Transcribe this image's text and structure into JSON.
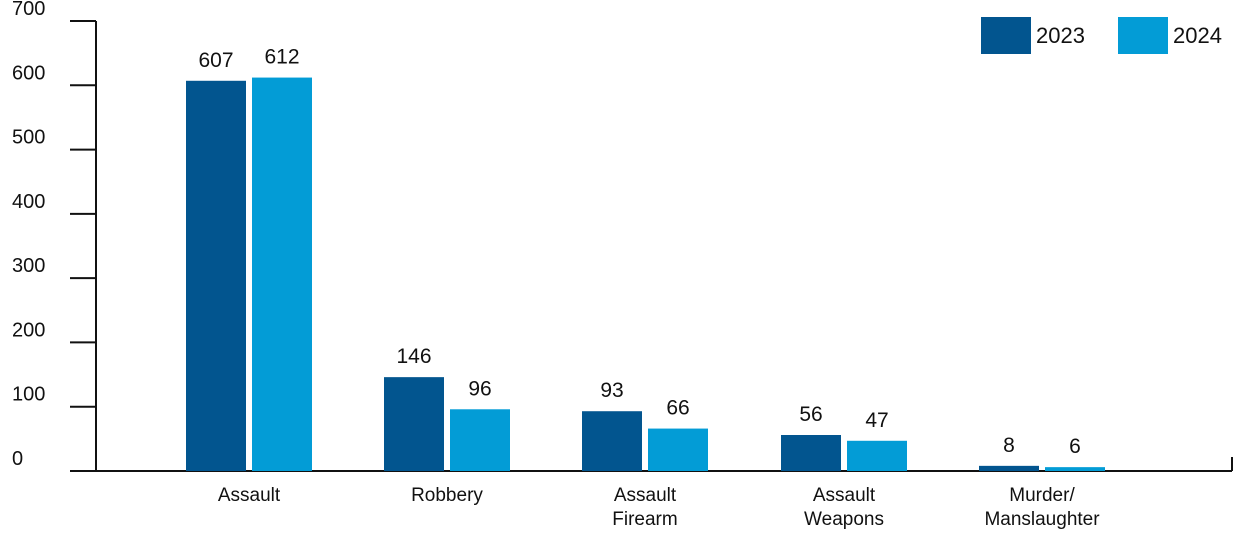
{
  "chart_data": {
    "type": "bar",
    "title": "",
    "xlabel": "",
    "ylabel": "",
    "ylim": [
      0,
      700
    ],
    "yticks": [
      0,
      100,
      200,
      300,
      400,
      500,
      600,
      700
    ],
    "grid": false,
    "legend_position": "top-right",
    "categories": [
      [
        "Assault"
      ],
      [
        "Robbery"
      ],
      [
        "Assault",
        "Firearm"
      ],
      [
        "Assault",
        "Weapons"
      ],
      [
        "Murder/",
        "Manslaughter"
      ]
    ],
    "series": [
      {
        "name": "2023",
        "color": "#02558f",
        "values": [
          607,
          146,
          93,
          56,
          8
        ]
      },
      {
        "name": "2024",
        "color": "#039cd6",
        "values": [
          612,
          96,
          66,
          47,
          6
        ]
      }
    ]
  }
}
